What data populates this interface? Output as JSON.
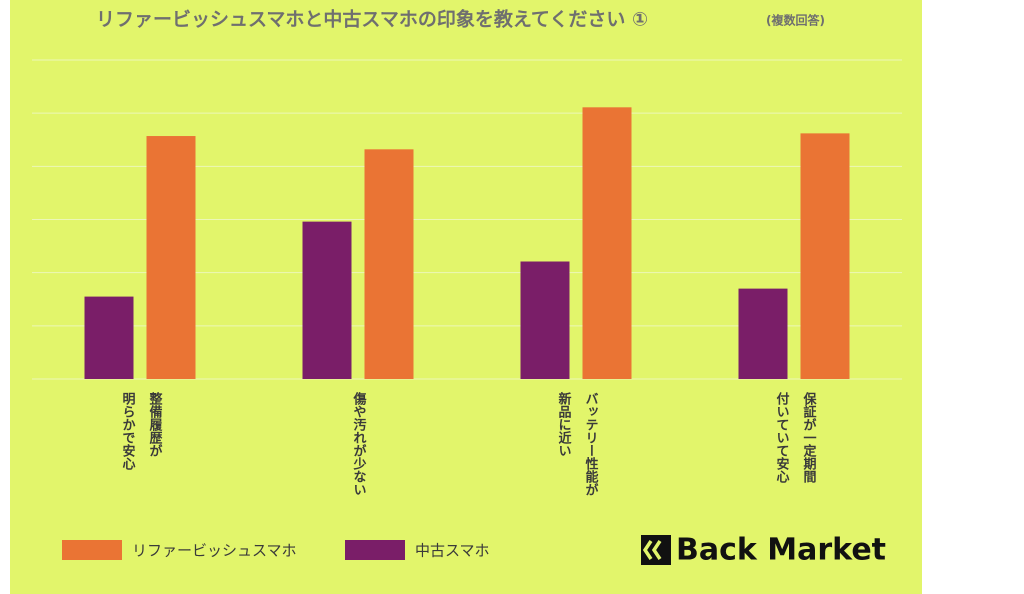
{
  "chart_data": {
    "type": "bar",
    "title": "リファービッシュスマホと中古スマホの印象を教えてください ①",
    "subtitle": "(複数回答)",
    "categories": [
      [
        "整備履歴が",
        "明らかで安心"
      ],
      [
        "傷や汚れが少ない"
      ],
      [
        "バッテリー性能が",
        "新品に近い"
      ],
      [
        "保証が一定期間",
        "付いていて安心"
      ]
    ],
    "series": [
      {
        "name": "中古スマホ",
        "color": "#7a1e68",
        "values": [
          15.5,
          29.6,
          22.1,
          17
        ]
      },
      {
        "name": "リファービッシュスマホ",
        "color": "#ea7434",
        "values": [
          45.7,
          43.2,
          51.1,
          46.2
        ]
      }
    ],
    "legend_order": [
      1,
      0
    ],
    "ylim": [
      0,
      60
    ],
    "yticks": [
      0,
      10,
      20,
      30,
      40,
      50,
      60
    ],
    "grid": true,
    "logo": "Back Market"
  }
}
